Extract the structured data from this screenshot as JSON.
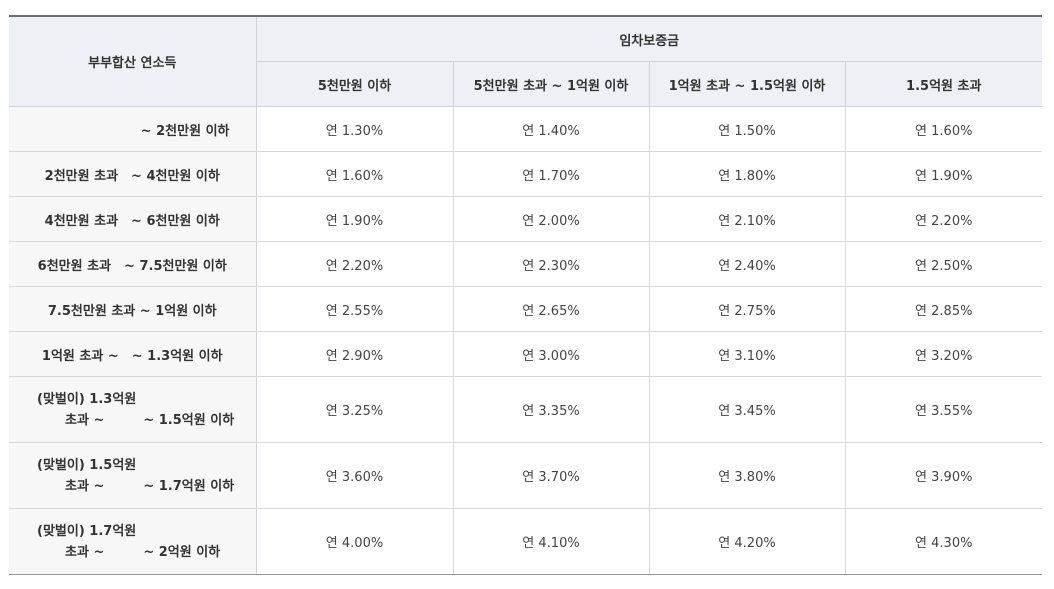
{
  "table": {
    "header": {
      "row_header": "부부합산 연소득",
      "group_header": "임차보증금",
      "columns": [
        "5천만원 이하",
        "5천만원 초과 ~ 1억원 이하",
        "1억원 초과 ~ 1.5억원 이하",
        "1.5억원 초과"
      ]
    },
    "rows": [
      {
        "label": "~ 2천만원 이하",
        "values": [
          "연 1.30%",
          "연 1.40%",
          "연 1.50%",
          "연 1.60%"
        ]
      },
      {
        "label": "2천만원 초과　~ 4천만원 이하",
        "values": [
          "연 1.60%",
          "연 1.70%",
          "연 1.80%",
          "연 1.90%"
        ]
      },
      {
        "label": "4천만원 초과　~ 6천만원 이하",
        "values": [
          "연 1.90%",
          "연 2.00%",
          "연 2.10%",
          "연 2.20%"
        ]
      },
      {
        "label": "6천만원 초과　~ 7.5천만원 이하",
        "values": [
          "연 2.20%",
          "연 2.30%",
          "연 2.40%",
          "연 2.50%"
        ]
      },
      {
        "label": "7.5천만원 초과 ~ 1억원 이하",
        "values": [
          "연 2.55%",
          "연 2.65%",
          "연 2.75%",
          "연 2.85%"
        ]
      },
      {
        "label": "1억원 초과 ~　~ 1.3억원 이하",
        "values": [
          "연 2.90%",
          "연 3.00%",
          "연 3.10%",
          "연 3.20%"
        ]
      },
      {
        "label_line1": "(맞벌이) 1.3억원",
        "label_line2": "초과 ~　　　~ 1.5억원 이하",
        "values": [
          "연 3.25%",
          "연 3.35%",
          "연 3.45%",
          "연 3.55%"
        ]
      },
      {
        "label_line1": "(맞벌이) 1.5억원",
        "label_line2": "초과 ~　　　~ 1.7억원 이하",
        "values": [
          "연 3.60%",
          "연 3.70%",
          "연 3.80%",
          "연 3.90%"
        ]
      },
      {
        "label_line1": "(맞벌이) 1.7억원",
        "label_line2": "초과 ~　　　~ 2억원 이하",
        "values": [
          "연 4.00%",
          "연 4.10%",
          "연 4.20%",
          "연 4.30%"
        ]
      }
    ]
  }
}
